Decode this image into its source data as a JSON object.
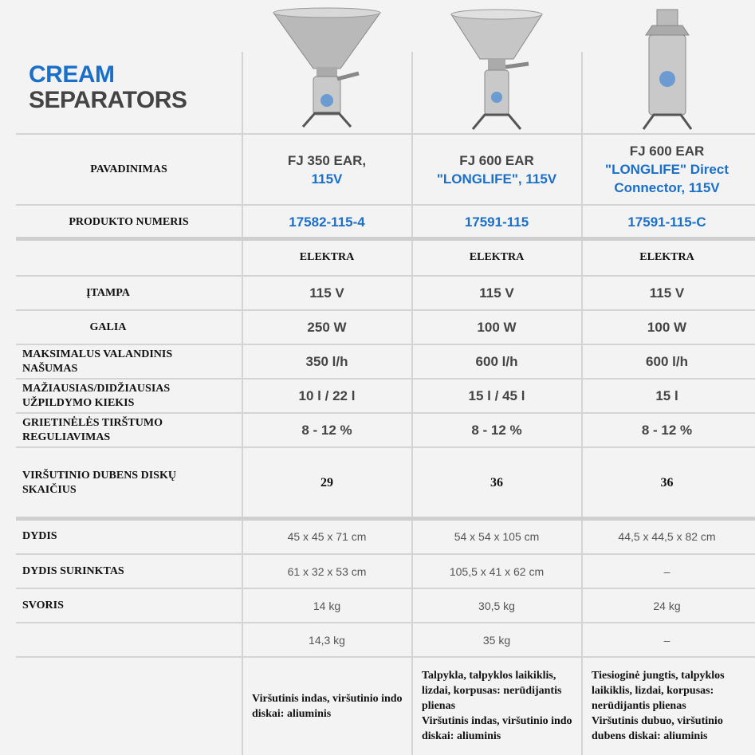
{
  "title": {
    "line1": "CREAM",
    "line2": "SEPARATORS"
  },
  "colors": {
    "accent": "#1a6fc9",
    "text": "#444444",
    "background": "#f3f3f3"
  },
  "products": [
    {
      "name_top": "FJ 350 EAR,",
      "name_bottom": "115V",
      "number": "17582-115-4"
    },
    {
      "name_top": "FJ 600 EAR",
      "name_bottom": "\"LONGLIFE\", 115V",
      "number": "17591-115"
    },
    {
      "name_top": "FJ 600 EAR",
      "name_bottom": "\"LONGLIFE\" Direct Connector, 115V",
      "number": "17591-115-C"
    }
  ],
  "labels": {
    "name": "PAVADINIMAS",
    "number": "PRODUKTO NUMERIS"
  },
  "rows": [
    {
      "label": "",
      "values": [
        "ELEKTRA",
        "ELEKTRA",
        "ELEKTRA"
      ]
    },
    {
      "label": "ĮTAMPA",
      "values": [
        "115 V",
        "115 V",
        "115 V"
      ]
    },
    {
      "label": "GALIA",
      "values": [
        "250 W",
        "100 W",
        "100 W"
      ]
    },
    {
      "label": "MAKSIMALUS VALANDINIS NAŠUMAS",
      "values": [
        "350 l/h",
        "600 l/h",
        "600 l/h"
      ]
    },
    {
      "label": "MAŽIAUSIAS/DIDŽIAUSIAS UŽPILDYMO KIEKIS",
      "values": [
        "10 l / 22 l",
        "15 l / 45 l",
        "15 l"
      ]
    },
    {
      "label": "GRIETINĖLĖS TIRŠTUMO REGULIAVIMAS",
      "values": [
        "8 - 12 %",
        "8 - 12 %",
        "8 - 12 %"
      ]
    },
    {
      "label": "VIRŠUTINIO DUBENS DISKŲ SKAIČIUS",
      "values": [
        "29",
        "36",
        "36"
      ]
    },
    {
      "label": "DYDIS",
      "values": [
        "45 x 45 x 71 cm",
        "54 x 54 x 105 cm",
        "44,5 x 44,5 x 82 cm"
      ]
    },
    {
      "label": "DYDIS SURINKTAS",
      "values": [
        "61 x 32 x 53 cm",
        "105,5 x 41 x 62 cm",
        "–"
      ]
    },
    {
      "label": "SVORIS",
      "values": [
        "14 kg",
        "30,5 kg",
        "24 kg"
      ]
    },
    {
      "label": "",
      "values": [
        "14,3 kg",
        "35 kg",
        "–"
      ]
    },
    {
      "label": "",
      "values": [
        "Viršutinis indas, viršutinio indo diskai: aliuminis",
        "Talpykla, talpyklos laikiklis, lizdai, korpusas: nerūdijantis plienas\nViršutinis indas, viršutinio indo diskai: aliuminis",
        "Tiesioginė jungtis, talpyklos laikiklis, lizdai, korpusas: nerūdijantis plienas\nViršutinis dubuo, viršutinio dubens diskai: aliuminis"
      ]
    }
  ]
}
